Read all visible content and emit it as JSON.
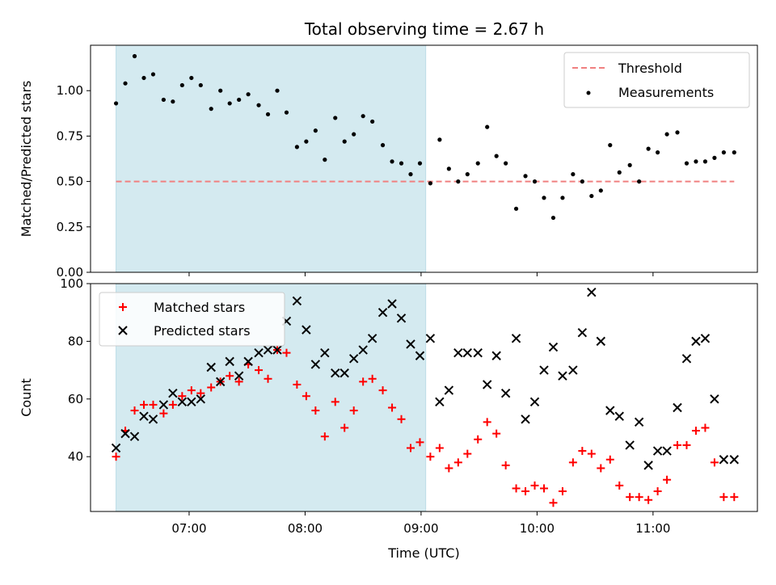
{
  "chart_data": {
    "title": "Total observing time = 2.67 h",
    "xlabel": "Time (UTC)",
    "x_unit": "hours UTC",
    "x_ticks": [
      {
        "value": 7,
        "label": "07:00"
      },
      {
        "value": 8,
        "label": "08:00"
      },
      {
        "value": 9,
        "label": "09:00"
      },
      {
        "value": 10,
        "label": "10:00"
      },
      {
        "value": 11,
        "label": "11:00"
      }
    ],
    "xlim": [
      6.15,
      11.9
    ],
    "shaded_interval": {
      "start": 6.37,
      "end": 9.04,
      "color": "#d4eaf0"
    },
    "panels": [
      {
        "type": "scatter",
        "ylabel": "Matched/Predicted stars",
        "ylim": [
          0.0,
          1.25
        ],
        "y_ticks": [
          {
            "value": 0.0,
            "label": "0.00"
          },
          {
            "value": 0.25,
            "label": "0.25"
          },
          {
            "value": 0.5,
            "label": "0.50"
          },
          {
            "value": 0.75,
            "label": "0.75"
          },
          {
            "value": 1.0,
            "label": "1.00"
          }
        ],
        "legend_position": "upper right",
        "threshold": {
          "name": "Threshold",
          "value": 0.5,
          "x_start": 6.37,
          "x_end": 11.7,
          "color": "#f08080",
          "style": "dashed"
        },
        "series": [
          {
            "name": "Measurements",
            "marker": "dot",
            "color": "#000000",
            "x": [
              6.37,
              6.45,
              6.53,
              6.61,
              6.69,
              6.78,
              6.86,
              6.94,
              7.02,
              7.1,
              7.19,
              7.27,
              7.35,
              7.43,
              7.51,
              7.6,
              7.68,
              7.76,
              7.84,
              7.93,
              8.01,
              8.09,
              8.17,
              8.26,
              8.34,
              8.42,
              8.5,
              8.58,
              8.67,
              8.75,
              8.83,
              8.91,
              8.99,
              9.08,
              9.16,
              9.24,
              9.32,
              9.4,
              9.49,
              9.57,
              9.65,
              9.73,
              9.82,
              9.9,
              9.98,
              10.06,
              10.14,
              10.22,
              10.31,
              10.39,
              10.47,
              10.55,
              10.63,
              10.71,
              10.8,
              10.88,
              10.96,
              11.04,
              11.12,
              11.21,
              11.29,
              11.37,
              11.45,
              11.53,
              11.61,
              11.7
            ],
            "y": [
              0.93,
              1.04,
              1.19,
              1.07,
              1.09,
              0.95,
              0.94,
              1.03,
              1.07,
              1.03,
              0.9,
              1.0,
              0.93,
              0.95,
              0.98,
              0.92,
              0.87,
              1.0,
              0.88,
              0.69,
              0.72,
              0.78,
              0.62,
              0.85,
              0.72,
              0.76,
              0.86,
              0.83,
              0.7,
              0.61,
              0.6,
              0.54,
              0.6,
              0.49,
              0.73,
              0.57,
              0.5,
              0.54,
              0.6,
              0.8,
              0.64,
              0.6,
              0.35,
              0.53,
              0.5,
              0.41,
              0.3,
              0.41,
              0.54,
              0.5,
              0.42,
              0.45,
              0.7,
              0.55,
              0.59,
              0.5,
              0.68,
              0.66,
              0.76,
              0.77,
              0.6,
              0.61,
              0.61,
              0.63,
              0.66,
              0.66
            ]
          }
        ]
      },
      {
        "type": "scatter",
        "ylabel": "Count",
        "ylim": [
          21,
          100
        ],
        "y_ticks": [
          {
            "value": 40,
            "label": "40"
          },
          {
            "value": 60,
            "label": "60"
          },
          {
            "value": 80,
            "label": "80"
          },
          {
            "value": 100,
            "label": "100"
          }
        ],
        "legend_position": "upper left",
        "series": [
          {
            "name": "Matched stars",
            "marker": "plus",
            "color": "#ff0000",
            "x": [
              6.37,
              6.45,
              6.53,
              6.61,
              6.69,
              6.78,
              6.86,
              6.94,
              7.02,
              7.1,
              7.19,
              7.27,
              7.35,
              7.43,
              7.51,
              7.6,
              7.68,
              7.76,
              7.84,
              7.93,
              8.01,
              8.09,
              8.17,
              8.26,
              8.34,
              8.42,
              8.5,
              8.58,
              8.67,
              8.75,
              8.83,
              8.91,
              8.99,
              9.08,
              9.16,
              9.24,
              9.32,
              9.4,
              9.49,
              9.57,
              9.65,
              9.73,
              9.82,
              9.9,
              9.98,
              10.06,
              10.14,
              10.22,
              10.31,
              10.39,
              10.47,
              10.55,
              10.63,
              10.71,
              10.8,
              10.88,
              10.96,
              11.04,
              11.12,
              11.21,
              11.29,
              11.37,
              11.45,
              11.53,
              11.61,
              11.7
            ],
            "y": [
              40,
              49,
              56,
              58,
              58,
              55,
              58,
              61,
              63,
              62,
              64,
              66,
              68,
              66,
              72,
              70,
              67,
              77,
              76,
              65,
              61,
              56,
              47,
              59,
              50,
              56,
              66,
              67,
              63,
              57,
              53,
              43,
              45,
              40,
              43,
              36,
              38,
              41,
              46,
              52,
              48,
              37,
              29,
              28,
              30,
              29,
              24,
              28,
              38,
              42,
              41,
              36,
              39,
              30,
              26,
              26,
              25,
              28,
              32,
              44,
              44,
              49,
              50,
              38,
              26,
              26
            ]
          },
          {
            "name": "Predicted stars",
            "marker": "x",
            "color": "#000000",
            "x": [
              6.37,
              6.45,
              6.53,
              6.61,
              6.69,
              6.78,
              6.86,
              6.94,
              7.02,
              7.1,
              7.19,
              7.27,
              7.35,
              7.43,
              7.51,
              7.6,
              7.68,
              7.76,
              7.84,
              7.93,
              8.01,
              8.09,
              8.17,
              8.26,
              8.34,
              8.42,
              8.5,
              8.58,
              8.67,
              8.75,
              8.83,
              8.91,
              8.99,
              9.08,
              9.16,
              9.24,
              9.32,
              9.4,
              9.49,
              9.57,
              9.65,
              9.73,
              9.82,
              9.9,
              9.98,
              10.06,
              10.14,
              10.22,
              10.31,
              10.39,
              10.47,
              10.55,
              10.63,
              10.71,
              10.8,
              10.88,
              10.96,
              11.04,
              11.12,
              11.21,
              11.29,
              11.37,
              11.45,
              11.53,
              11.61,
              11.7
            ],
            "y": [
              43,
              48,
              47,
              54,
              53,
              58,
              62,
              59,
              59,
              60,
              71,
              66,
              73,
              68,
              73,
              76,
              77,
              77,
              87,
              94,
              84,
              72,
              76,
              69,
              69,
              74,
              77,
              81,
              90,
              93,
              88,
              79,
              75,
              81,
              59,
              63,
              76,
              76,
              76,
              65,
              75,
              62,
              81,
              53,
              59,
              70,
              78,
              68,
              70,
              83,
              97,
              80,
              56,
              54,
              44,
              52,
              37,
              42,
              42,
              57,
              74,
              80,
              81,
              60,
              39,
              39
            ]
          }
        ]
      }
    ]
  }
}
